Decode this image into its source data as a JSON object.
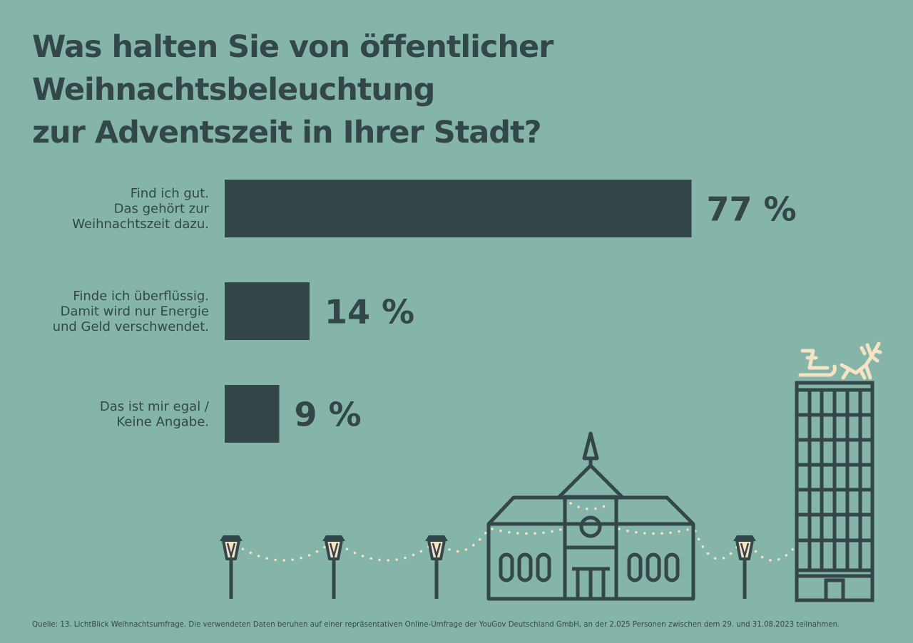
{
  "title_lines": [
    "Was halten Sie von öffentlicher Weihnachtsbeleuchtung",
    "zur Adventszeit in Ihrer Stadt?"
  ],
  "colors": {
    "background": "#85b5a8",
    "bar": "#33474a",
    "text": "#33474a",
    "lights": "#f6e3c4"
  },
  "chart_data": {
    "type": "bar",
    "orientation": "horizontal",
    "title": "Was halten Sie von öffentlicher Weihnachtsbeleuchtung zur Adventszeit in Ihrer Stadt?",
    "categories": [
      [
        "Find ich gut.",
        "Das gehört zur",
        "Weihnachtszeit dazu."
      ],
      [
        "Finde ich überflüssig.",
        "Damit wird nur Energie",
        "und Geld verschwendet."
      ],
      [
        "Das ist mir egal /",
        "Keine Angabe."
      ]
    ],
    "values": [
      77,
      14,
      9
    ],
    "value_labels": [
      "77 %",
      "14 %",
      "9 %"
    ],
    "unit": "%",
    "xlim": [
      0,
      100
    ],
    "grid": false,
    "legend": "none"
  },
  "illustration": {
    "icons": [
      "street-lamp-icon",
      "town-hall-icon",
      "skyscraper-icon",
      "sleigh-icon",
      "reindeer-icon",
      "string-lights-icon"
    ]
  },
  "source": "Quelle: 13. LichtBlick Weihnachtsumfrage. Die verwendeten Daten beruhen auf einer repräsentativen Online-Umfrage der YouGov Deutschland GmbH, an der 2.025 Personen zwischen dem 29. und 31.08.2023 teilnahmen."
}
